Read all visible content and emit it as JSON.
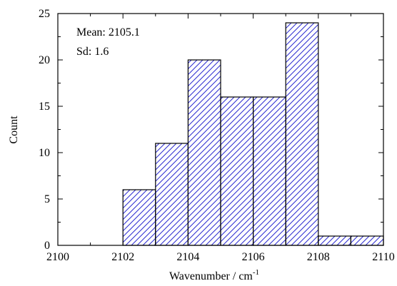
{
  "chart_data": {
    "type": "bar",
    "subtype": "histogram",
    "bins": [
      {
        "x0": 2102,
        "x1": 2103,
        "count": 6
      },
      {
        "x0": 2103,
        "x1": 2104,
        "count": 11
      },
      {
        "x0": 2104,
        "x1": 2105,
        "count": 20
      },
      {
        "x0": 2105,
        "x1": 2106,
        "count": 16
      },
      {
        "x0": 2106,
        "x1": 2107,
        "count": 16
      },
      {
        "x0": 2107,
        "x1": 2108,
        "count": 24
      },
      {
        "x0": 2108,
        "x1": 2109,
        "count": 1
      },
      {
        "x0": 2109,
        "x1": 2110,
        "count": 1
      }
    ],
    "xlabel": "Wavenumber / cm",
    "xlabel_superscript": "-1",
    "ylabel": "Count",
    "xlim": [
      2100,
      2110
    ],
    "ylim": [
      0,
      25
    ],
    "xticks": [
      2100,
      2102,
      2104,
      2106,
      2108,
      2110
    ],
    "yticks": [
      0,
      5,
      10,
      15,
      20,
      25
    ],
    "annotations": [
      "Mean: 2105.1",
      "Sd: 1.6"
    ],
    "grid": false,
    "hatch_color": "#2a2ad0",
    "bar_edge_color": "#000000"
  }
}
